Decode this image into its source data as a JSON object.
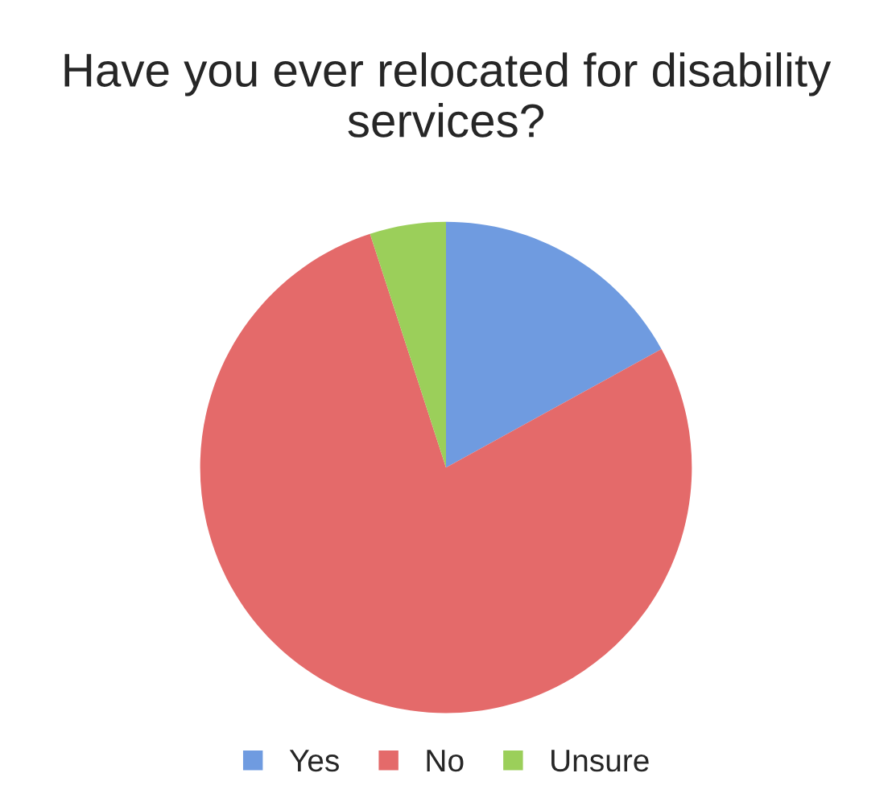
{
  "chart_data": {
    "type": "pie",
    "title": "Have you ever relocated for disability services?",
    "categories": [
      "Yes",
      "No",
      "Unsure"
    ],
    "values": [
      17,
      78,
      5
    ],
    "colors": [
      "#6f9be0",
      "#e46a6a",
      "#9bcf5a"
    ],
    "legend": "bottom"
  }
}
